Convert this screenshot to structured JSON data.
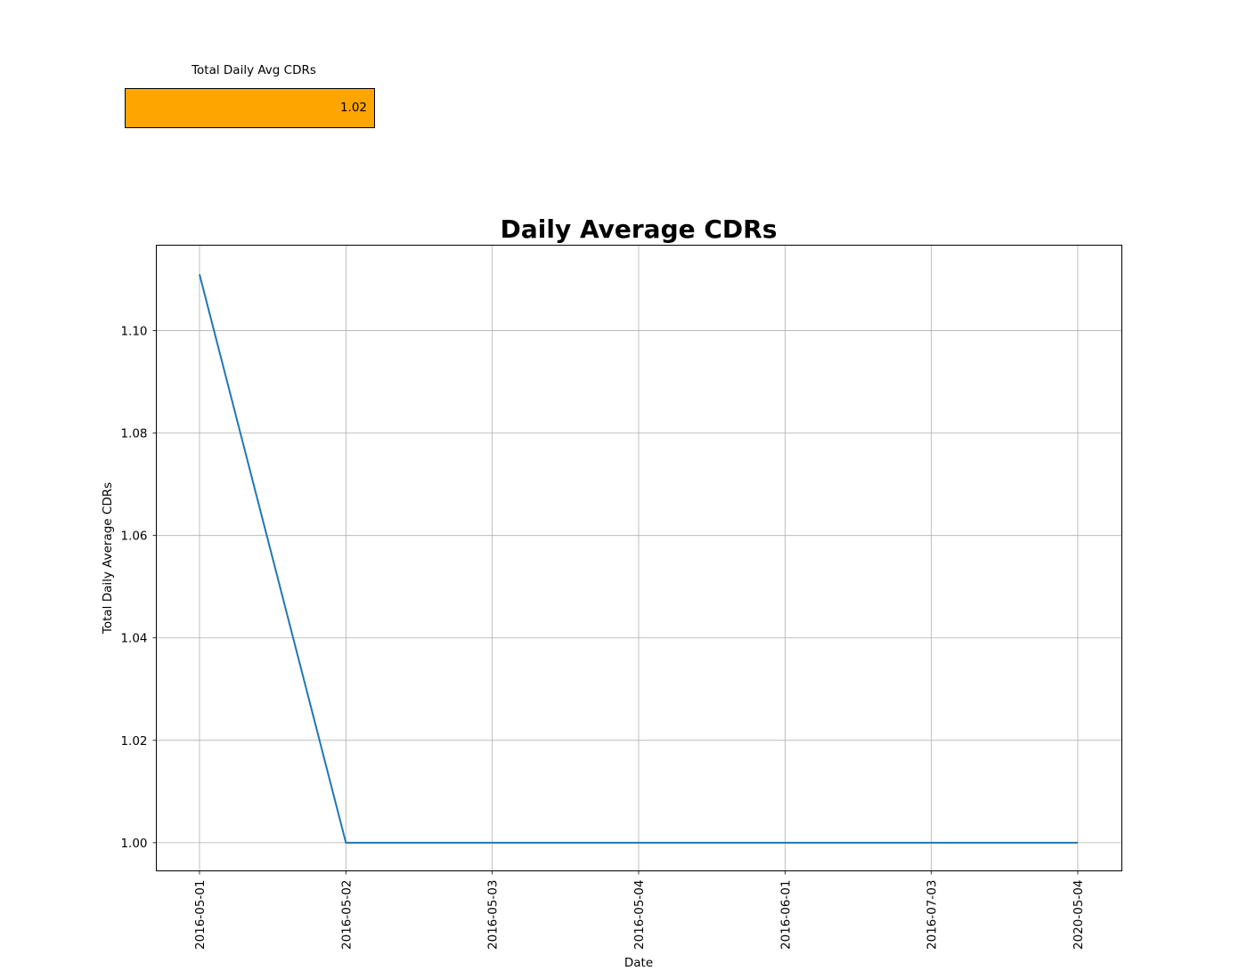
{
  "kpi": {
    "label": "Total Daily Avg CDRs",
    "value": "1.02",
    "color": "#ffa500"
  },
  "chart_data": {
    "type": "line",
    "title": "Daily Average CDRs",
    "xlabel": "Date",
    "ylabel": "Total Daily Average CDRs",
    "x_axis_kind": "categorical",
    "categories": [
      "2016-05-01",
      "2016-05-02",
      "2016-05-03",
      "2016-05-04",
      "2016-06-01",
      "2016-07-03",
      "2020-05-04"
    ],
    "values": [
      1.111,
      1.0,
      1.0,
      1.0,
      1.0,
      1.0,
      1.0
    ],
    "ylim": [
      0.9945,
      1.1167
    ],
    "y_ticks": [
      "1.00",
      "1.02",
      "1.04",
      "1.06",
      "1.08",
      "1.10"
    ],
    "grid": true,
    "line_color": "#1f77b4",
    "grid_color": "#b0b0b0"
  }
}
